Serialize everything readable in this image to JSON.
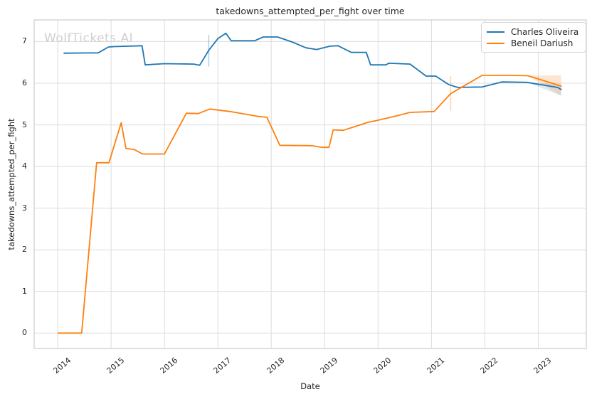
{
  "watermark": "WolfTickets.AI",
  "chart_data": {
    "type": "line",
    "title": "takedowns_attempted_per_fight over time",
    "xlabel": "Date",
    "ylabel": "takedowns_attempted_per_fight",
    "xlim": [
      2013.56,
      2023.9
    ],
    "ylim": [
      -0.37,
      7.52
    ],
    "xticks": [
      "2014",
      "2015",
      "2016",
      "2017",
      "2018",
      "2019",
      "2020",
      "2021",
      "2022",
      "2023"
    ],
    "yticks": [
      "0",
      "1",
      "2",
      "3",
      "4",
      "5",
      "6",
      "7"
    ],
    "grid": true,
    "grid_color": "#dcdcdc",
    "spine_color": "#cccccc",
    "legend_position": "upper right",
    "series": [
      {
        "name": "Charles Oliveira",
        "color": "#1f77b4",
        "points": [
          [
            2014.12,
            6.72
          ],
          [
            2014.76,
            6.73
          ],
          [
            2014.95,
            6.87
          ],
          [
            2015.06,
            6.88
          ],
          [
            2015.58,
            6.9
          ],
          [
            2015.64,
            6.44
          ],
          [
            2016.0,
            6.47
          ],
          [
            2016.55,
            6.46
          ],
          [
            2016.66,
            6.43
          ],
          [
            2016.83,
            6.79
          ],
          [
            2017.0,
            7.07
          ],
          [
            2017.15,
            7.2
          ],
          [
            2017.25,
            7.02
          ],
          [
            2017.69,
            7.02
          ],
          [
            2017.85,
            7.11
          ],
          [
            2018.12,
            7.11
          ],
          [
            2018.39,
            6.99
          ],
          [
            2018.65,
            6.85
          ],
          [
            2018.85,
            6.81
          ],
          [
            2019.1,
            6.89
          ],
          [
            2019.25,
            6.9
          ],
          [
            2019.5,
            6.74
          ],
          [
            2019.78,
            6.74
          ],
          [
            2019.86,
            6.44
          ],
          [
            2020.15,
            6.44
          ],
          [
            2020.2,
            6.48
          ],
          [
            2020.6,
            6.46
          ],
          [
            2020.9,
            6.17
          ],
          [
            2021.08,
            6.17
          ],
          [
            2021.32,
            5.97
          ],
          [
            2021.49,
            5.9
          ],
          [
            2021.95,
            5.91
          ],
          [
            2022.32,
            6.03
          ],
          [
            2022.79,
            6.02
          ],
          [
            2023.36,
            5.9
          ],
          [
            2023.43,
            5.85
          ]
        ],
        "event_marker": {
          "x": 2016.83,
          "y_low": 6.4,
          "y_high": 7.16,
          "opacity": 0.35
        },
        "forecast_band": {
          "x": [
            2022.79,
            2023.43
          ],
          "lower": [
            6.02,
            5.7
          ],
          "upper": [
            6.02,
            5.97
          ],
          "opacity": 0.15
        }
      },
      {
        "name": "Beneil Dariush",
        "color": "#ff7f0e",
        "points": [
          [
            2014.01,
            0.0
          ],
          [
            2014.45,
            0.0
          ],
          [
            2014.73,
            4.09
          ],
          [
            2014.96,
            4.09
          ],
          [
            2015.19,
            5.05
          ],
          [
            2015.28,
            4.43
          ],
          [
            2015.43,
            4.41
          ],
          [
            2015.59,
            4.3
          ],
          [
            2016.0,
            4.3
          ],
          [
            2016.41,
            5.28
          ],
          [
            2016.63,
            5.27
          ],
          [
            2016.85,
            5.38
          ],
          [
            2017.23,
            5.32
          ],
          [
            2017.72,
            5.21
          ],
          [
            2017.92,
            5.18
          ],
          [
            2018.16,
            4.51
          ],
          [
            2018.76,
            4.5
          ],
          [
            2018.95,
            4.46
          ],
          [
            2019.08,
            4.46
          ],
          [
            2019.16,
            4.88
          ],
          [
            2019.35,
            4.87
          ],
          [
            2019.81,
            5.06
          ],
          [
            2020.03,
            5.12
          ],
          [
            2020.39,
            5.23
          ],
          [
            2020.6,
            5.3
          ],
          [
            2021.05,
            5.32
          ],
          [
            2021.36,
            5.75
          ],
          [
            2021.59,
            5.92
          ],
          [
            2021.95,
            6.19
          ],
          [
            2022.4,
            6.19
          ],
          [
            2022.81,
            6.18
          ],
          [
            2023.43,
            5.93
          ]
        ],
        "event_marker": {
          "x": 2021.36,
          "y_low": 5.33,
          "y_high": 6.17,
          "opacity": 0.35
        },
        "forecast_band": {
          "x": [
            2022.81,
            2023.43
          ],
          "lower": [
            6.18,
            5.7
          ],
          "upper": [
            6.18,
            6.19
          ],
          "opacity": 0.2
        }
      }
    ]
  }
}
